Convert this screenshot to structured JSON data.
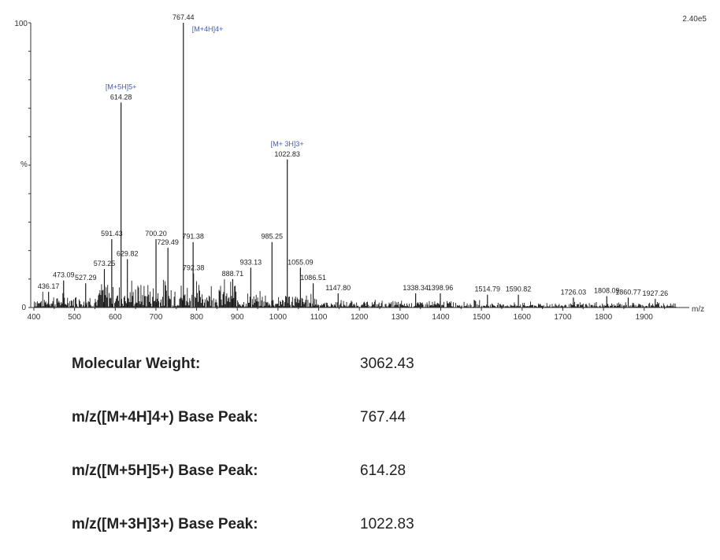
{
  "chart_data": {
    "type": "bar",
    "title": "",
    "xlabel": "m/z",
    "ylabel": "%",
    "scale_label": "2.40e5",
    "xlim": [
      400,
      1990
    ],
    "ylim": [
      0,
      100
    ],
    "x_ticks": [
      "400",
      "500",
      "600",
      "700",
      "800",
      "900",
      "1000",
      "1100",
      "1200",
      "1300",
      "1400",
      "1500",
      "1600",
      "1700",
      "1800",
      "1900"
    ],
    "y_ticks": [
      "0",
      "100"
    ],
    "peaks": [
      {
        "mz": 436.17,
        "rel": 5.5,
        "label": "436.17"
      },
      {
        "mz": 473.09,
        "rel": 9.5,
        "label": "473.09"
      },
      {
        "mz": 527.29,
        "rel": 8.5,
        "label": "527.29"
      },
      {
        "mz": 573.25,
        "rel": 13.5,
        "label": "573.25"
      },
      {
        "mz": 591.43,
        "rel": 24,
        "label": "591.43"
      },
      {
        "mz": 614.28,
        "rel": 72,
        "label": "614.28"
      },
      {
        "mz": 629.82,
        "rel": 17,
        "label": "629.82"
      },
      {
        "mz": 700.2,
        "rel": 24,
        "label": "700.20"
      },
      {
        "mz": 729.49,
        "rel": 21,
        "label": "729.49"
      },
      {
        "mz": 767.44,
        "rel": 100,
        "label": "767.44"
      },
      {
        "mz": 791.38,
        "rel": 23,
        "label": "791.38"
      },
      {
        "mz": 792.38,
        "rel": 12,
        "label": "792.38"
      },
      {
        "mz": 888.71,
        "rel": 10,
        "label": "888.71"
      },
      {
        "mz": 933.13,
        "rel": 14,
        "label": "933.13"
      },
      {
        "mz": 985.25,
        "rel": 23,
        "label": "985.25"
      },
      {
        "mz": 1022.83,
        "rel": 52,
        "label": "1022.83"
      },
      {
        "mz": 1055.09,
        "rel": 14,
        "label": "1055.09"
      },
      {
        "mz": 1086.51,
        "rel": 8.5,
        "label": "1086.51"
      },
      {
        "mz": 1147.8,
        "rel": 5,
        "label": "1147.80"
      },
      {
        "mz": 1338.34,
        "rel": 5,
        "label": "1338.34"
      },
      {
        "mz": 1398.96,
        "rel": 5,
        "label": "1398.96"
      },
      {
        "mz": 1514.79,
        "rel": 4.5,
        "label": "1514.79"
      },
      {
        "mz": 1590.82,
        "rel": 4.5,
        "label": "1590.82"
      },
      {
        "mz": 1726.03,
        "rel": 3.5,
        "label": "1726.03"
      },
      {
        "mz": 1808.09,
        "rel": 4,
        "label": "1808.09"
      },
      {
        "mz": 1860.77,
        "rel": 3.5,
        "label": "1860.77"
      },
      {
        "mz": 1927.26,
        "rel": 3,
        "label": "1927.26"
      }
    ],
    "ion_annotations": [
      {
        "text": "[M+5H]5+",
        "mz": 614.28
      },
      {
        "text": "[M+4H]4+",
        "mz": 767.44
      },
      {
        "text": "[M+ 3H]3+",
        "mz": 1022.83
      }
    ],
    "colors": {
      "axis": "#333333",
      "spectrum": "#1a1a1a",
      "ion": "#4a5aa8",
      "scale": "#e03030"
    }
  },
  "details": [
    {
      "label": "Molecular Weight:",
      "value": "3062.43"
    },
    {
      "label": "m/z([M+4H]4+) Base Peak:",
      "value": "767.44"
    },
    {
      "label": "m/z([M+5H]5+) Base Peak:",
      "value": "614.28"
    },
    {
      "label": "m/z([M+3H]3+) Base Peak:",
      "value": "1022.83"
    }
  ]
}
